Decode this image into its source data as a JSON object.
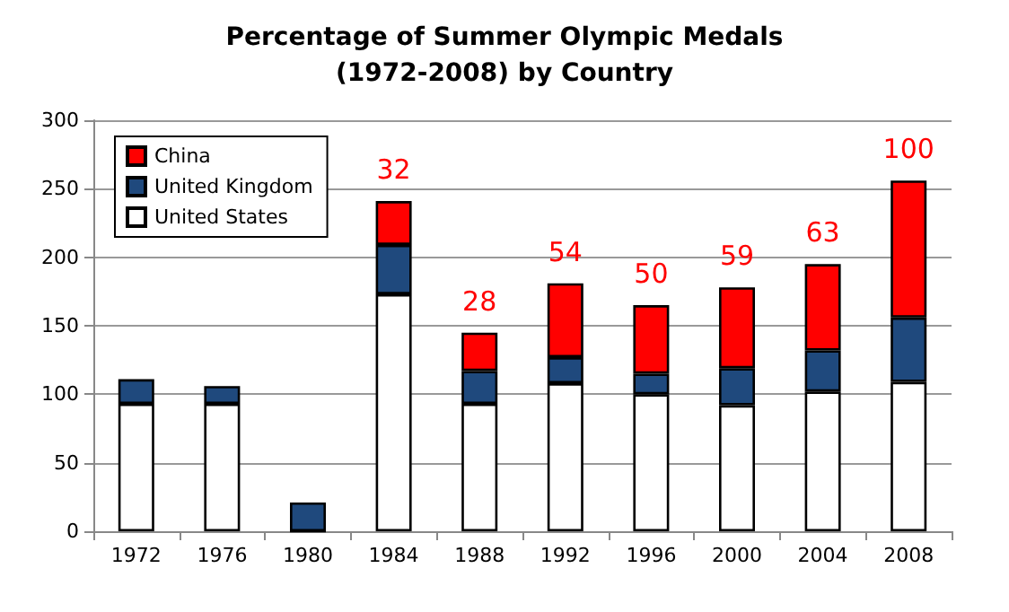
{
  "chart_data": {
    "type": "bar",
    "title": "Percentage of Summer Olympic Medals\n(1972-2008) by Country",
    "categories": [
      "1972",
      "1976",
      "1980",
      "1984",
      "1988",
      "1992",
      "1996",
      "2000",
      "2004",
      "2008"
    ],
    "stacked": true,
    "series": [
      {
        "name": "United States",
        "color": "#ffffff",
        "values": [
          93,
          93,
          0,
          173,
          93,
          108,
          100,
          92,
          102,
          109
        ]
      },
      {
        "name": "United Kingdom",
        "color": "#1f497d",
        "values": [
          18,
          13,
          21,
          36,
          24,
          19,
          15,
          27,
          30,
          47
        ]
      },
      {
        "name": "China",
        "color": "#ff0000",
        "values": [
          null,
          null,
          null,
          32,
          28,
          54,
          50,
          59,
          63,
          100
        ],
        "value_labels": [
          null,
          null,
          null,
          "32",
          "28",
          "54",
          "50",
          "59",
          "63",
          "100"
        ]
      }
    ],
    "ylim": [
      0,
      300
    ],
    "yticks": [
      0,
      50,
      100,
      150,
      200,
      250,
      300
    ],
    "grid": "y",
    "legend": "top left"
  }
}
